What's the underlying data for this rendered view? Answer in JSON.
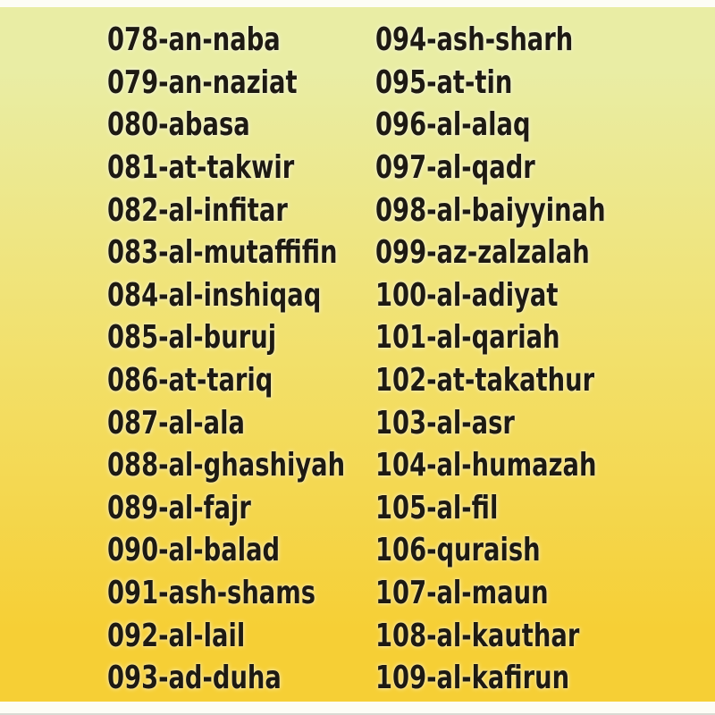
{
  "page": {
    "colors": {
      "background_top": "#e9eda4",
      "background_middle": "#f2e06b",
      "background_bottom": "#f6cf35",
      "frame": "#fdfdf6",
      "text": "#1e1a12"
    }
  },
  "surah_list": {
    "left_column": [
      "078-an-naba",
      "079-an-naziat",
      "080-abasa",
      "081-at-takwir",
      "082-al-infitar",
      "083-al-mutaffifin",
      "084-al-inshiqaq",
      "085-al-buruj",
      "086-at-tariq",
      "087-al-ala",
      "088-al-ghashiyah",
      "089-al-fajr",
      "090-al-balad",
      "091-ash-shams",
      "092-al-lail",
      "093-ad-duha"
    ],
    "right_column": [
      "094-ash-sharh",
      "095-at-tin",
      "096-al-alaq",
      "097-al-qadr",
      "098-al-baiyyinah",
      "099-az-zalzalah",
      "100-al-adiyat",
      "101-al-qariah",
      "102-at-takathur",
      "103-al-asr",
      "104-al-humazah",
      "105-al-fil",
      "106-quraish",
      "107-al-maun",
      "108-al-kauthar",
      "109-al-kafirun"
    ]
  }
}
